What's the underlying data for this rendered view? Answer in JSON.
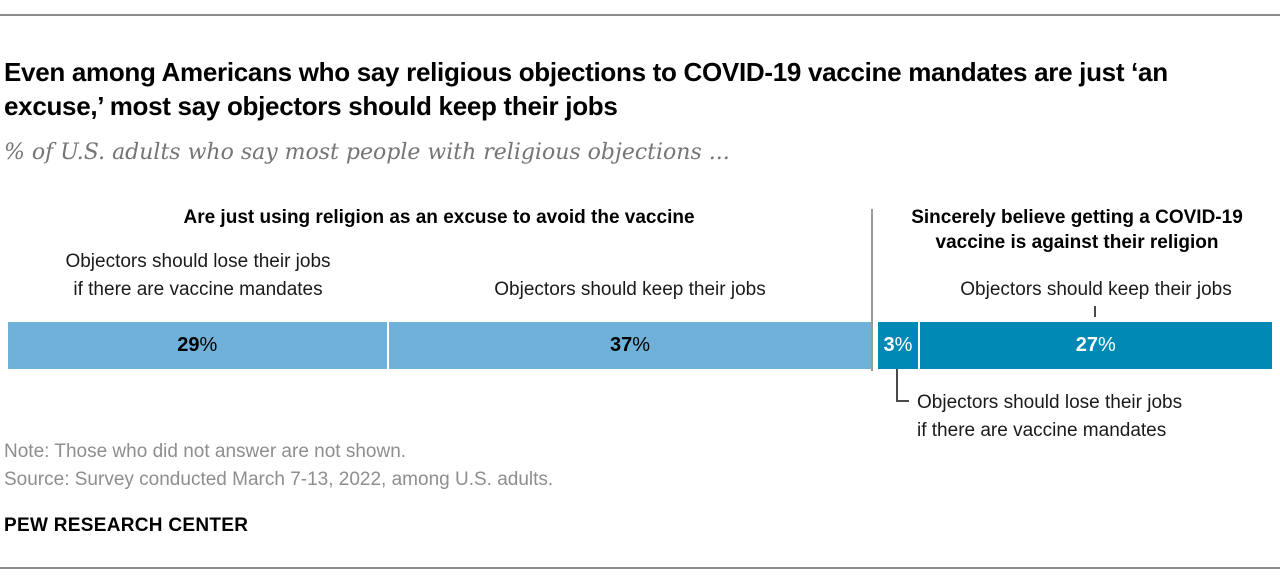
{
  "meta": {
    "percent_sign": "%"
  },
  "header": {
    "title": "Even among Americans who say religious objections to COVID-19 vaccine mandates are just ‘an excuse,’ most say objectors should keep their jobs",
    "subtitle": "% of U.S. adults who say most people with religious objections ..."
  },
  "chart_data": {
    "type": "bar",
    "orientation": "horizontal",
    "stacked": true,
    "unit": "%",
    "axis_range_percent": [
      0,
      96
    ],
    "grid": false,
    "legend": "none",
    "groups": [
      {
        "header": "Are just using religion as an excuse to avoid the vaccine",
        "color": "#6fb1d8",
        "segments": [
          {
            "label_lines": [
              "Objectors should lose their jobs",
              "if there are vaccine mandates"
            ],
            "value": 29
          },
          {
            "label_lines": [
              "Objectors should keep their jobs"
            ],
            "value": 37
          }
        ]
      },
      {
        "header": "Sincerely believe getting a COVID-19 vaccine is against their religion",
        "color": "#0089b5",
        "segments": [
          {
            "label_lines": [
              "Objectors should lose their jobs",
              "if there are vaccine mandates"
            ],
            "value": 3
          },
          {
            "label_lines": [
              "Objectors should keep their jobs"
            ],
            "value": 27
          }
        ]
      }
    ]
  },
  "footer": {
    "note": "Note: Those who did not answer are not shown.",
    "source": "Source: Survey conducted March 7-13, 2022, among U.S. adults.",
    "brand": "PEW RESEARCH CENTER"
  },
  "colors": {
    "light_blue": "#6fb1d8",
    "dark_blue": "#0089b5",
    "divider_gray": "#9b9b9b",
    "rule_gray": "#8c8c8c",
    "note_gray": "#8e8e8e"
  }
}
